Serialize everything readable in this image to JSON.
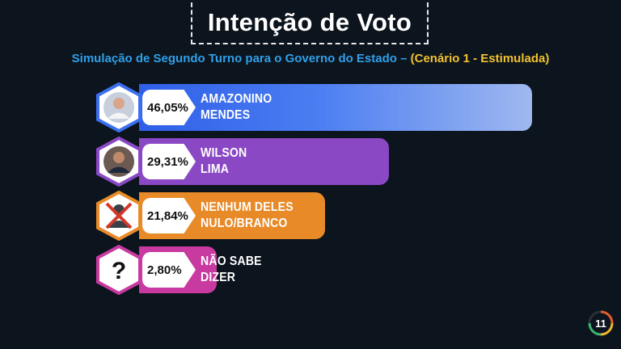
{
  "title": "Intenção de Voto",
  "subtitle": {
    "main": "Simulação de Segundo Turno para o Governo do Estado –",
    "highlight": "(Cenário 1 - Estimulada)"
  },
  "logo": {
    "text": "11",
    "icon": "channel-11-logo"
  },
  "chart_data": {
    "type": "bar",
    "orientation": "horizontal",
    "categories": [
      "AMAZONINO MENDES",
      "WILSON LIMA",
      "NENHUM DELES NULO/BRANCO",
      "NÃO SABE DIZER"
    ],
    "values": [
      46.05,
      29.31,
      21.84,
      2.8
    ],
    "labels": [
      "46,05%",
      "29,31%",
      "21,84%",
      "2,80%"
    ],
    "bars": [
      {
        "line1": "AMAZONINO",
        "line2": "MENDES",
        "value": 46.05,
        "label": "46,05%",
        "color": "#3b6ff0",
        "icon": "candidate-photo-icon"
      },
      {
        "line1": "WILSON",
        "line2": "LIMA",
        "value": 29.31,
        "label": "29,31%",
        "color": "#8a48c4",
        "icon": "candidate-photo-icon"
      },
      {
        "line1": "NENHUM DELES",
        "line2": "NULO/BRANCO",
        "value": 21.84,
        "label": "21,84%",
        "color": "#e88a28",
        "icon": "crossed-person-icon"
      },
      {
        "line1": "NÃO SABE",
        "line2": "DIZER",
        "value": 2.8,
        "label": "2,80%",
        "color": "#c83aa0",
        "icon": "question-mark-icon"
      }
    ],
    "xlim": [
      0,
      60
    ]
  }
}
